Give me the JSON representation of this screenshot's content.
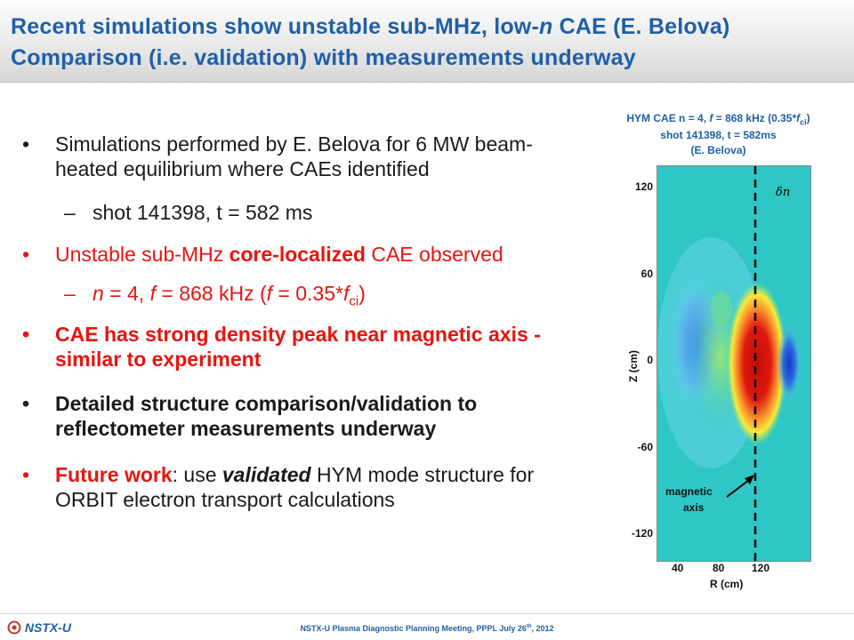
{
  "title": {
    "line1_pre": "Recent simulations show unstable sub-MHz, low-",
    "line1_ital": "n",
    "line1_post": " CAE (E. Belova)",
    "line2": "Comparison (i.e. validation) with measurements underway"
  },
  "bullets": {
    "b1": "Simulations performed by E. Belova for 6 MW beam-heated equilibrium where CAEs identified",
    "b1_sub": "shot 141398, t = 582 ms",
    "b2_pre": "Unstable sub-MHz ",
    "b2_bold": "core-localized",
    "b2_post": " CAE observed",
    "b2_sub": {
      "n": "n",
      "eq1": " = 4, ",
      "f": "f",
      "eq2": " = 868 kHz (",
      "f2": "f",
      "eq3": " = 0.35*",
      "f3": "f",
      "sub": "ci",
      "close": ")"
    },
    "b3": "CAE has strong density peak near magnetic axis - similar to experiment",
    "b4": "Detailed structure comparison/validation to reflectometer measurements underway",
    "b5_bold": "Future work",
    "b5_mid": ": use ",
    "b5_ital": "validated",
    "b5_post": " HYM mode structure for ORBIT electron transport calculations",
    "bullet_mark": "•",
    "dash_mark": "–"
  },
  "figure": {
    "caption1_pre": "HYM CAE n = 4, ",
    "caption1_f": "f",
    "caption1_mid": " = 868 kHz (0.35*",
    "caption1_f2": "f",
    "caption1_sub": "ci",
    "caption1_close": ")",
    "caption2": "shot 141398, t = 582ms",
    "caption3": "(E. Belova)",
    "y_ticks": [
      "120",
      "60",
      "0",
      "-60",
      "-120"
    ],
    "x_ticks": [
      "40",
      "80",
      "120"
    ],
    "x_title": "R (cm)",
    "y_title": "Z (cm)",
    "delta_n_label": "δn",
    "annotation": [
      "magnetic",
      "axis"
    ],
    "colors": {
      "background": "#2fc6c6",
      "light": "#63d6e8",
      "mid_blue": "#3f8fe6",
      "deep_blue": "#1d4fd8",
      "green": "#8fe36a",
      "yellow": "#f5ec3b",
      "orange": "#fb9a2e",
      "red": "#e0180e"
    }
  },
  "footer": {
    "left": "NSTX-U",
    "center_pre": "NSTX-U Plasma Diagnostic Planning Meeting, PPPL July 26",
    "center_sup": "th",
    "center_post": ", 2012"
  },
  "colors": {
    "title_blue": "#1f5fa8",
    "red": "#e8140f",
    "text": "#1a1a1a"
  }
}
